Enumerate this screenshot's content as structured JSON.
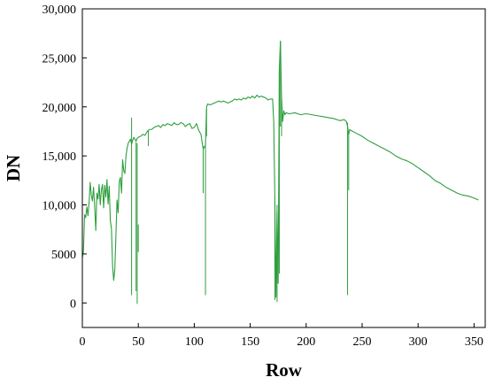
{
  "chart_data": {
    "type": "line",
    "title": "",
    "xlabel": "Row",
    "ylabel": "DN",
    "xlim": [
      0,
      360
    ],
    "ylim": [
      -2500,
      30000
    ],
    "x_ticks": [
      0,
      50,
      100,
      150,
      200,
      250,
      300,
      350
    ],
    "x_tick_labels": [
      "0",
      "50",
      "100",
      "150",
      "200",
      "250",
      "300",
      "350"
    ],
    "y_ticks": [
      0,
      5000,
      10000,
      15000,
      20000,
      25000,
      30000
    ],
    "y_tick_labels": [
      "0",
      "5000",
      "10,000",
      "15,000",
      "20,000",
      "25,000",
      "30,000"
    ],
    "grid": false,
    "series": [
      {
        "color": "#2e9e3e",
        "points": [
          [
            0,
            4600
          ],
          [
            1,
            5300
          ],
          [
            2,
            9000
          ],
          [
            3,
            8700
          ],
          [
            4,
            9800
          ],
          [
            5,
            8900
          ],
          [
            6,
            10200
          ],
          [
            7,
            12300
          ],
          [
            8,
            11000
          ],
          [
            9,
            10400
          ],
          [
            10,
            11800
          ],
          [
            11,
            9900
          ],
          [
            12,
            7400
          ],
          [
            13,
            11200
          ],
          [
            14,
            10600
          ],
          [
            15,
            12100
          ],
          [
            16,
            10000
          ],
          [
            17,
            11500
          ],
          [
            18,
            12100
          ],
          [
            19,
            9700
          ],
          [
            20,
            12000
          ],
          [
            21,
            10800
          ],
          [
            22,
            12600
          ],
          [
            23,
            10100
          ],
          [
            24,
            11900
          ],
          [
            25,
            8400
          ],
          [
            26,
            7600
          ],
          [
            27,
            3800
          ],
          [
            28,
            2300
          ],
          [
            29,
            3400
          ],
          [
            30,
            6900
          ],
          [
            31,
            10500
          ],
          [
            32,
            9200
          ],
          [
            33,
            12400
          ],
          [
            34,
            12800
          ],
          [
            35,
            11200
          ],
          [
            36,
            14600
          ],
          [
            37,
            13500
          ],
          [
            38,
            13200
          ],
          [
            39,
            15000
          ],
          [
            40,
            15800
          ],
          [
            41,
            16300
          ],
          [
            42,
            16500
          ],
          [
            43,
            16700
          ],
          [
            44,
            16200
          ],
          [
            45,
            16600
          ],
          [
            46,
            16900
          ],
          [
            47,
            16700
          ],
          [
            48,
            16500
          ],
          [
            49,
            16800
          ],
          [
            50,
            16900
          ],
          [
            52,
            17000
          ],
          [
            54,
            17200
          ],
          [
            56,
            17100
          ],
          [
            58,
            17500
          ],
          [
            60,
            17700
          ],
          [
            62,
            17700
          ],
          [
            64,
            17900
          ],
          [
            66,
            18000
          ],
          [
            68,
            18100
          ],
          [
            70,
            17900
          ],
          [
            72,
            18200
          ],
          [
            74,
            18100
          ],
          [
            76,
            18300
          ],
          [
            78,
            18200
          ],
          [
            80,
            18100
          ],
          [
            82,
            18400
          ],
          [
            84,
            18200
          ],
          [
            86,
            18200
          ],
          [
            88,
            18400
          ],
          [
            90,
            18300
          ],
          [
            92,
            18000
          ],
          [
            94,
            18200
          ],
          [
            96,
            18300
          ],
          [
            98,
            17800
          ],
          [
            100,
            17900
          ],
          [
            102,
            18300
          ],
          [
            104,
            17600
          ],
          [
            106,
            17200
          ],
          [
            107,
            16400
          ],
          [
            108,
            15700
          ],
          [
            109,
            15900
          ],
          [
            110,
            16100
          ],
          [
            111,
            20000
          ],
          [
            112,
            20300
          ],
          [
            114,
            20200
          ],
          [
            116,
            20300
          ],
          [
            118,
            20400
          ],
          [
            120,
            20500
          ],
          [
            122,
            20600
          ],
          [
            124,
            20500
          ],
          [
            126,
            20600
          ],
          [
            128,
            20500
          ],
          [
            130,
            20400
          ],
          [
            132,
            20500
          ],
          [
            134,
            20600
          ],
          [
            136,
            20800
          ],
          [
            138,
            20700
          ],
          [
            140,
            20800
          ],
          [
            142,
            20700
          ],
          [
            144,
            20900
          ],
          [
            146,
            20800
          ],
          [
            148,
            21000
          ],
          [
            150,
            20900
          ],
          [
            152,
            21100
          ],
          [
            154,
            20900
          ],
          [
            156,
            21200
          ],
          [
            158,
            21000
          ],
          [
            160,
            21100
          ],
          [
            162,
            21000
          ],
          [
            164,
            20900
          ],
          [
            166,
            20700
          ],
          [
            168,
            20800
          ],
          [
            170,
            20800
          ],
          [
            171,
            18500
          ],
          [
            172,
            10900
          ],
          [
            173,
            600
          ],
          [
            174,
            9300
          ],
          [
            175,
            2000
          ],
          [
            176,
            23800
          ],
          [
            177,
            26700
          ],
          [
            178,
            21000
          ],
          [
            179,
            18500
          ],
          [
            180,
            19600
          ],
          [
            181,
            19200
          ],
          [
            182,
            19400
          ],
          [
            185,
            19300
          ],
          [
            190,
            19400
          ],
          [
            195,
            19200
          ],
          [
            200,
            19300
          ],
          [
            205,
            19200
          ],
          [
            210,
            19100
          ],
          [
            215,
            19000
          ],
          [
            220,
            18900
          ],
          [
            225,
            18800
          ],
          [
            230,
            18600
          ],
          [
            234,
            18700
          ],
          [
            236,
            18500
          ],
          [
            237,
            18000
          ],
          [
            238,
            17200
          ],
          [
            239,
            17700
          ],
          [
            240,
            17600
          ],
          [
            245,
            17300
          ],
          [
            250,
            17000
          ],
          [
            255,
            16600
          ],
          [
            260,
            16300
          ],
          [
            265,
            16000
          ],
          [
            270,
            15700
          ],
          [
            275,
            15400
          ],
          [
            280,
            15000
          ],
          [
            285,
            14700
          ],
          [
            290,
            14500
          ],
          [
            295,
            14200
          ],
          [
            300,
            13800
          ],
          [
            305,
            13400
          ],
          [
            310,
            13000
          ],
          [
            315,
            12500
          ],
          [
            320,
            12200
          ],
          [
            325,
            11800
          ],
          [
            330,
            11500
          ],
          [
            335,
            11200
          ],
          [
            340,
            11000
          ],
          [
            345,
            10900
          ],
          [
            350,
            10700
          ],
          [
            354,
            10500
          ]
        ],
        "spikes": [
          {
            "x": 44,
            "from": 16200,
            "to": 18900
          },
          {
            "x": 44,
            "from": 16200,
            "to": 800
          },
          {
            "x": 48,
            "from": 16400,
            "to": 1200
          },
          {
            "x": 49,
            "from": 16300,
            "to": -100
          },
          {
            "x": 50,
            "from": 8000,
            "to": 5200
          },
          {
            "x": 59,
            "from": 17600,
            "to": 16000
          },
          {
            "x": 108,
            "from": 16000,
            "to": 11200
          },
          {
            "x": 110,
            "from": 16300,
            "to": 800
          },
          {
            "x": 111,
            "from": 19800,
            "to": 17000
          },
          {
            "x": 172,
            "from": 10800,
            "to": 300
          },
          {
            "x": 174,
            "from": 10000,
            "to": 100
          },
          {
            "x": 176,
            "from": 24000,
            "to": 3000
          },
          {
            "x": 177,
            "from": 26700,
            "to": 18000
          },
          {
            "x": 178,
            "from": 21000,
            "to": 17000
          },
          {
            "x": 237,
            "from": 18400,
            "to": 9800
          },
          {
            "x": 238,
            "from": 17500,
            "to": 11500
          },
          {
            "x": 237,
            "from": 9800,
            "to": 800
          }
        ]
      }
    ]
  }
}
